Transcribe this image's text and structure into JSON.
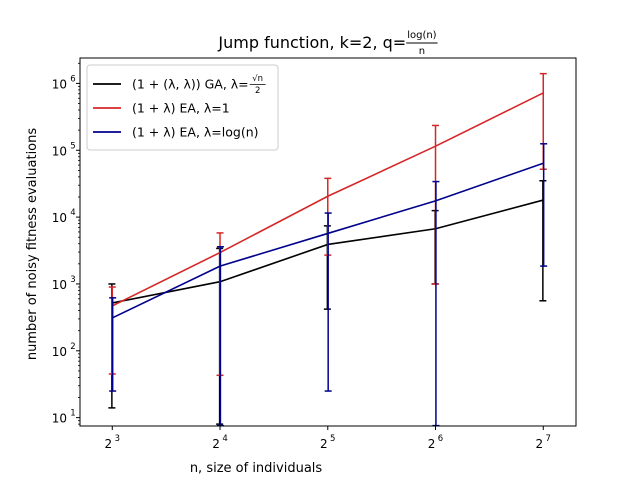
{
  "chart_data": {
    "type": "line",
    "title": {
      "prefix": "Jump function, k=2, q=",
      "frac_num": "log(n)",
      "frac_den": "n"
    },
    "xlabel": "n, size of individuals",
    "ylabel": "number of noisy fitness evaluations",
    "x_scale": "log2",
    "y_scale": "log10",
    "x": [
      8,
      16,
      32,
      64,
      128
    ],
    "x_tick_labels": [
      {
        "base": "2",
        "exp": "3"
      },
      {
        "base": "2",
        "exp": "4"
      },
      {
        "base": "2",
        "exp": "5"
      },
      {
        "base": "2",
        "exp": "6"
      },
      {
        "base": "2",
        "exp": "7"
      }
    ],
    "y_tick_labels": [
      {
        "base": "10",
        "exp": "1"
      },
      {
        "base": "10",
        "exp": "2"
      },
      {
        "base": "10",
        "exp": "3"
      },
      {
        "base": "10",
        "exp": "4"
      },
      {
        "base": "10",
        "exp": "5"
      },
      {
        "base": "10",
        "exp": "6"
      }
    ],
    "ylim": [
      7.5,
      2400000
    ],
    "xlim": [
      6.5,
      158
    ],
    "grid": false,
    "legend_position": "top-left",
    "series": [
      {
        "name": "(1 + (λ, λ)) GA, λ=√n/2",
        "legend": {
          "pre": "(1 + (λ, λ)) GA, λ=",
          "frac_num": "√n",
          "frac_den": "2"
        },
        "color": "#000000",
        "values": [
          520,
          1080,
          3900,
          6700,
          18000
        ],
        "err_low": [
          14,
          8,
          420,
          1000,
          560
        ],
        "err_high": [
          1000,
          3400,
          7400,
          12500,
          35000
        ]
      },
      {
        "name": "(1 + λ) EA, λ=1",
        "legend": {
          "pre": "(1 + λ) EA, λ=1"
        },
        "color": "#d62728",
        "values": [
          470,
          2950,
          20500,
          115000,
          720000
        ],
        "err_low": [
          45,
          43,
          2700,
          1000,
          52000
        ],
        "err_high": [
          900,
          5800,
          38000,
          235000,
          1400000
        ]
      },
      {
        "name": "(1 + λ) EA, λ=log(n)",
        "legend": {
          "pre": "(1 + λ) EA, λ=log(n)"
        },
        "color": "#00008b",
        "values": [
          310,
          1850,
          5700,
          17500,
          64000
        ],
        "err_low": [
          25,
          7.6,
          25,
          7.6,
          1850
        ],
        "err_high": [
          620,
          3600,
          11500,
          34000,
          125000
        ]
      }
    ]
  }
}
